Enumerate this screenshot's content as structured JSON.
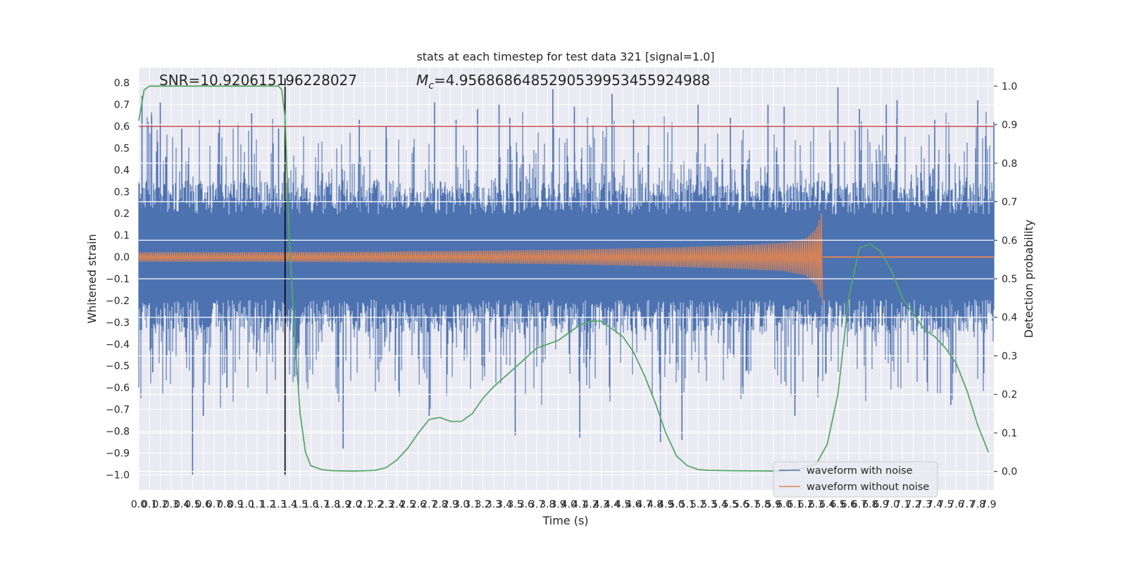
{
  "chart_data": {
    "type": "line",
    "title": "stats at each timestep for test data 321 [signal=1.0]",
    "xlabel": "Time (s)",
    "ylabel": "Whitened strain",
    "y2label": "Detection probability",
    "xlim": [
      0.0,
      7.95
    ],
    "ylim": [
      -1.07,
      0.87
    ],
    "y2lim": [
      -0.048,
      1.048
    ],
    "x_ticks": [
      "0.0",
      "0.1",
      "0.2",
      "0.3",
      "0.4",
      "0.5",
      "0.6",
      "0.7",
      "0.8",
      "0.9",
      "1.0",
      "1.1",
      "1.2",
      "1.3",
      "1.4",
      "1.5",
      "1.6",
      "1.7",
      "1.8",
      "1.9",
      "2.0",
      "2.1",
      "2.2",
      "2.3",
      "2.4",
      "2.5",
      "2.6",
      "2.7",
      "2.8",
      "2.9",
      "3.0",
      "3.1",
      "3.2",
      "3.3",
      "3.4",
      "3.5",
      "3.6",
      "3.7",
      "3.8",
      "3.9",
      "4.0",
      "4.1",
      "4.2",
      "4.3",
      "4.4",
      "4.5",
      "4.6",
      "4.7",
      "4.8",
      "4.9",
      "5.0",
      "5.1",
      "5.2",
      "5.3",
      "5.4",
      "5.5",
      "5.6",
      "5.7",
      "5.8",
      "5.9",
      "6.0",
      "6.1",
      "6.2",
      "6.3",
      "6.4",
      "6.5",
      "6.6",
      "6.7",
      "6.8",
      "6.9",
      "7.0",
      "7.1",
      "7.2",
      "7.3",
      "7.4",
      "7.5",
      "7.6",
      "7.7",
      "7.8",
      "7.9"
    ],
    "y_ticks": [
      "0.8",
      "0.7",
      "0.6",
      "0.5",
      "0.4",
      "0.3",
      "0.2",
      "0.1",
      "0.0",
      "−0.1",
      "−0.2",
      "−0.3",
      "−0.4",
      "−0.5",
      "−0.6",
      "−0.7",
      "−0.8",
      "−0.9",
      "−1.0"
    ],
    "y2_ticks": [
      "1.0",
      "0.9",
      "0.8",
      "0.7",
      "0.6",
      "0.5",
      "0.4",
      "0.3",
      "0.2",
      "0.1",
      "0.0"
    ],
    "annotations": {
      "snr": "SNR=10.920615196228027",
      "mc_symbol": "M",
      "mc_sub": "c",
      "mc_value": "=4.9568686485290539953455924988"
    },
    "threshold_y": 0.6,
    "peak_marker_x": 1.36,
    "series": [
      {
        "name": "waveform with noise",
        "color": "#4c72b0",
        "kind": "noise",
        "core_amplitude": 0.26,
        "spikes": [
          [
            0.03,
            0.74
          ],
          [
            0.12,
            0.65
          ],
          [
            0.13,
            -0.53
          ],
          [
            0.2,
            0.71
          ],
          [
            0.5,
            -1.0
          ],
          [
            0.6,
            -0.73
          ],
          [
            0.4,
            0.59
          ],
          [
            0.75,
            0.63
          ],
          [
            0.82,
            -0.6
          ],
          [
            1.05,
            0.66
          ],
          [
            1.3,
            0.59
          ],
          [
            1.45,
            -0.55
          ],
          [
            1.9,
            -0.88
          ],
          [
            2.05,
            0.63
          ],
          [
            2.3,
            0.6
          ],
          [
            2.7,
            -0.73
          ],
          [
            2.75,
            0.71
          ],
          [
            2.95,
            0.63
          ],
          [
            3.15,
            0.68
          ],
          [
            3.35,
            0.7
          ],
          [
            3.45,
            0.64
          ],
          [
            3.5,
            -0.82
          ],
          [
            3.85,
            0.77
          ],
          [
            4.05,
            0.69
          ],
          [
            4.1,
            -0.83
          ],
          [
            4.4,
            0.75
          ],
          [
            4.6,
            0.63
          ],
          [
            4.85,
            -0.85
          ],
          [
            5.05,
            -0.84
          ],
          [
            5.2,
            0.7
          ],
          [
            5.5,
            0.64
          ],
          [
            5.85,
            0.7
          ],
          [
            6.0,
            0.69
          ],
          [
            6.1,
            -0.73
          ],
          [
            6.5,
            0.78
          ],
          [
            6.7,
            0.68
          ],
          [
            6.95,
            0.7
          ],
          [
            7.05,
            0.72
          ],
          [
            7.4,
            0.63
          ],
          [
            7.55,
            -0.68
          ],
          [
            7.8,
            0.72
          ],
          [
            7.95,
            0.62
          ]
        ]
      },
      {
        "name": "waveform without noise",
        "color": "#dd8452",
        "kind": "chirp",
        "end_x": 6.36,
        "envelope": [
          [
            0.0,
            0.022
          ],
          [
            1.0,
            0.022
          ],
          [
            2.0,
            0.024
          ],
          [
            3.0,
            0.028
          ],
          [
            4.0,
            0.034
          ],
          [
            5.0,
            0.045
          ],
          [
            5.6,
            0.055
          ],
          [
            6.0,
            0.065
          ],
          [
            6.2,
            0.085
          ],
          [
            6.3,
            0.13
          ],
          [
            6.36,
            0.22
          ]
        ]
      },
      {
        "name": "detection probability",
        "color": "#55a868",
        "axis": "right",
        "x": [
          0.0,
          0.05,
          0.1,
          0.2,
          0.3,
          0.5,
          0.8,
          1.0,
          1.2,
          1.3,
          1.33,
          1.36,
          1.4,
          1.45,
          1.5,
          1.55,
          1.6,
          1.7,
          1.8,
          2.0,
          2.2,
          2.3,
          2.4,
          2.5,
          2.6,
          2.7,
          2.8,
          2.9,
          3.0,
          3.1,
          3.2,
          3.3,
          3.5,
          3.7,
          3.9,
          4.0,
          4.1,
          4.2,
          4.3,
          4.5,
          4.6,
          4.7,
          4.8,
          4.9,
          5.0,
          5.1,
          5.2,
          5.3,
          5.5,
          6.0,
          6.2,
          6.3,
          6.4,
          6.5,
          6.6,
          6.7,
          6.8,
          6.9,
          7.0,
          7.1,
          7.2,
          7.3,
          7.4,
          7.5,
          7.6,
          7.7,
          7.8,
          7.9
        ],
        "values": [
          0.91,
          0.99,
          1.0,
          1.0,
          1.0,
          1.0,
          1.0,
          1.0,
          1.0,
          1.0,
          0.99,
          0.92,
          0.6,
          0.35,
          0.15,
          0.05,
          0.015,
          0.005,
          0.002,
          0.001,
          0.003,
          0.01,
          0.03,
          0.06,
          0.1,
          0.135,
          0.14,
          0.13,
          0.13,
          0.15,
          0.19,
          0.22,
          0.27,
          0.32,
          0.34,
          0.36,
          0.38,
          0.39,
          0.39,
          0.35,
          0.31,
          0.25,
          0.18,
          0.1,
          0.04,
          0.015,
          0.005,
          0.003,
          0.002,
          0.001,
          0.01,
          0.02,
          0.07,
          0.2,
          0.45,
          0.58,
          0.59,
          0.57,
          0.52,
          0.45,
          0.41,
          0.37,
          0.35,
          0.32,
          0.28,
          0.21,
          0.12,
          0.05
        ]
      }
    ],
    "threshold_color": "#c44e52",
    "marker_color": "#000000",
    "legend": {
      "location": "lower-right",
      "entries": [
        "waveform with noise",
        "waveform without noise"
      ]
    }
  }
}
